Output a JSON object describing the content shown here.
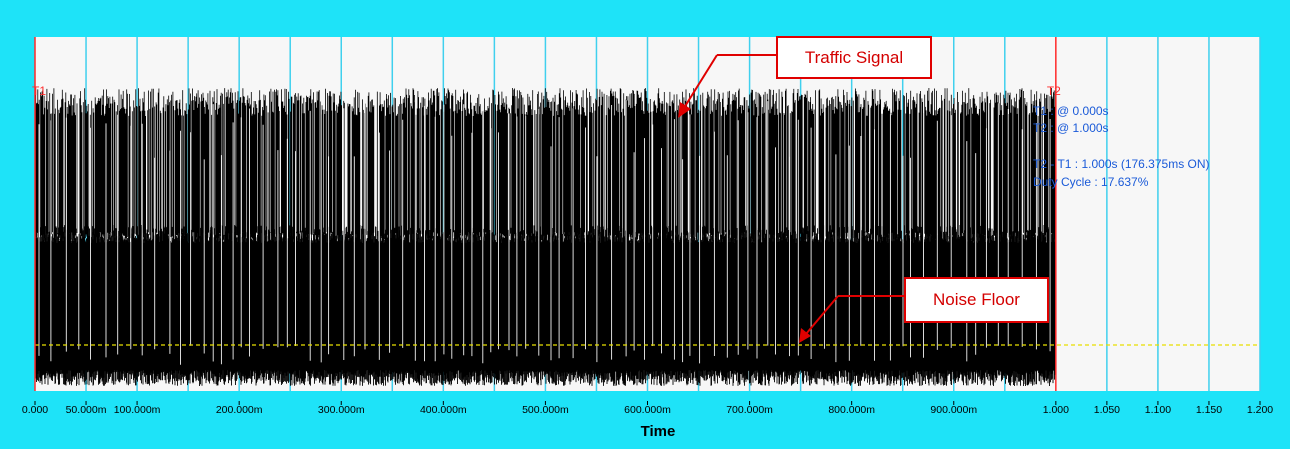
{
  "chart_data": {
    "type": "line",
    "xlabel": "Time",
    "xlim": [
      0,
      1.2
    ],
    "x_ticks": [
      {
        "value": 0.0,
        "label": "0.000"
      },
      {
        "value": 0.05,
        "label": "50.000m"
      },
      {
        "value": 0.1,
        "label": "100.000m"
      },
      {
        "value": 0.2,
        "label": "200.000m"
      },
      {
        "value": 0.3,
        "label": "300.000m"
      },
      {
        "value": 0.4,
        "label": "400.000m"
      },
      {
        "value": 0.5,
        "label": "500.000m"
      },
      {
        "value": 0.6,
        "label": "600.000m"
      },
      {
        "value": 0.7,
        "label": "700.000m"
      },
      {
        "value": 0.8,
        "label": "800.000m"
      },
      {
        "value": 0.9,
        "label": "900.000m"
      },
      {
        "value": 1.0,
        "label": "1.000"
      },
      {
        "value": 1.05,
        "label": "1.050"
      },
      {
        "value": 1.1,
        "label": "1.100"
      },
      {
        "value": 1.15,
        "label": "1.150"
      },
      {
        "value": 1.2,
        "label": "1.200"
      }
    ],
    "grid_x": [
      0.05,
      0.1,
      0.15,
      0.2,
      0.25,
      0.3,
      0.35,
      0.4,
      0.45,
      0.5,
      0.55,
      0.6,
      0.65,
      0.7,
      0.75,
      0.8,
      0.85,
      0.9,
      0.95,
      1.05,
      1.1,
      1.15,
      1.2
    ],
    "signal": {
      "x_start": 0.0,
      "x_end": 1.0,
      "duty_cycle_percent": 17.637,
      "on_time_ms": 176.375
    },
    "cursors": [
      {
        "name": "T1",
        "x": 0.0,
        "label": "T1"
      },
      {
        "name": "T2",
        "x": 1.0,
        "label": "T2"
      }
    ],
    "noise_floor_level": 0.13,
    "grid": true
  },
  "measurements": {
    "t1": "T1 : @ 0.000s",
    "t2": "T2 : @ 1.000s",
    "delta": "T2 - T1 : 1.000s (176.375ms ON)",
    "duty": "Duty Cycle : 17.637%"
  },
  "annotations": {
    "traffic": "Traffic Signal",
    "noise": "Noise Floor"
  },
  "colors": {
    "background": "#1ee3f8",
    "plot_bg": "#f7f7f7",
    "grid": "#3fd0ee",
    "signal": "#000000",
    "cursor": "#ff2a2a",
    "noise_floor": "#e8e000",
    "text_info": "#1a5ad8",
    "callout": "#e00000"
  }
}
